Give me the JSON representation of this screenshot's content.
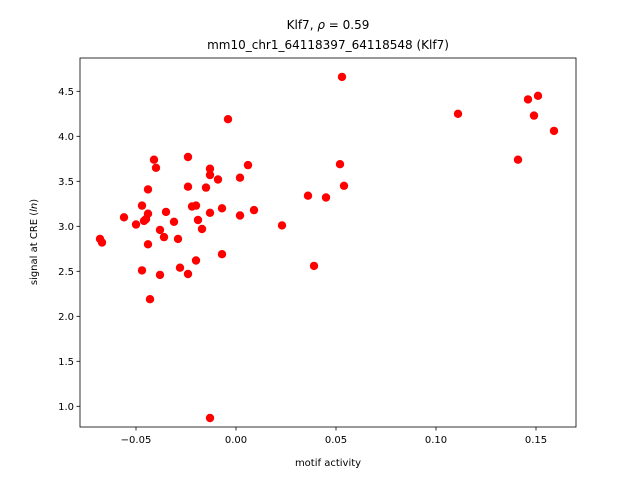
{
  "chart_data": {
    "type": "scatter",
    "title_main": "Klf7, ",
    "title_rho": "ρ",
    "title_value": " = 0.59",
    "subtitle": "mm10_chr1_64118397_64118548 (Klf7)",
    "xlabel": "motif activity",
    "ylabel_prefix": "signal at CRE (",
    "ylabel_italic": "ln",
    "ylabel_suffix": ")",
    "xlim": [
      -0.078,
      0.17
    ],
    "ylim": [
      0.77,
      4.87
    ],
    "xticks": [
      -0.05,
      0.0,
      0.05,
      0.1,
      0.15
    ],
    "xtick_labels": [
      "−0.05",
      "0.00",
      "0.05",
      "0.10",
      "0.15"
    ],
    "yticks": [
      1.0,
      1.5,
      2.0,
      2.5,
      3.0,
      3.5,
      4.0,
      4.5
    ],
    "ytick_labels": [
      "1.0",
      "1.5",
      "2.0",
      "2.5",
      "3.0",
      "3.5",
      "4.0",
      "4.5"
    ],
    "point_color": "#ff0000",
    "grid": false,
    "points": [
      [
        -0.068,
        2.86
      ],
      [
        -0.067,
        2.82
      ],
      [
        -0.056,
        3.1
      ],
      [
        -0.05,
        3.02
      ],
      [
        -0.047,
        3.23
      ],
      [
        -0.046,
        3.06
      ],
      [
        -0.045,
        3.08
      ],
      [
        -0.047,
        2.51
      ],
      [
        -0.044,
        3.41
      ],
      [
        -0.044,
        3.14
      ],
      [
        -0.044,
        2.8
      ],
      [
        -0.043,
        2.19
      ],
      [
        -0.041,
        3.74
      ],
      [
        -0.04,
        3.65
      ],
      [
        -0.038,
        2.46
      ],
      [
        -0.038,
        2.96
      ],
      [
        -0.036,
        2.88
      ],
      [
        -0.035,
        3.16
      ],
      [
        -0.031,
        3.05
      ],
      [
        -0.029,
        2.86
      ],
      [
        -0.028,
        2.54
      ],
      [
        -0.024,
        3.77
      ],
      [
        -0.024,
        3.44
      ],
      [
        -0.024,
        2.47
      ],
      [
        -0.022,
        3.22
      ],
      [
        -0.02,
        3.23
      ],
      [
        -0.02,
        2.62
      ],
      [
        -0.019,
        3.07
      ],
      [
        -0.017,
        2.97
      ],
      [
        -0.015,
        3.43
      ],
      [
        -0.013,
        3.64
      ],
      [
        -0.013,
        3.57
      ],
      [
        -0.013,
        3.15
      ],
      [
        -0.013,
        0.87
      ],
      [
        -0.009,
        3.52
      ],
      [
        -0.007,
        3.2
      ],
      [
        -0.007,
        2.69
      ],
      [
        -0.004,
        4.19
      ],
      [
        0.002,
        3.54
      ],
      [
        0.002,
        3.12
      ],
      [
        0.006,
        3.68
      ],
      [
        0.009,
        3.18
      ],
      [
        0.023,
        3.01
      ],
      [
        0.036,
        3.34
      ],
      [
        0.039,
        2.56
      ],
      [
        0.045,
        3.32
      ],
      [
        0.052,
        3.69
      ],
      [
        0.054,
        3.45
      ],
      [
        0.053,
        4.66
      ],
      [
        0.111,
        4.25
      ],
      [
        0.141,
        3.74
      ],
      [
        0.146,
        4.41
      ],
      [
        0.149,
        4.23
      ],
      [
        0.151,
        4.45
      ],
      [
        0.159,
        4.06
      ]
    ]
  }
}
